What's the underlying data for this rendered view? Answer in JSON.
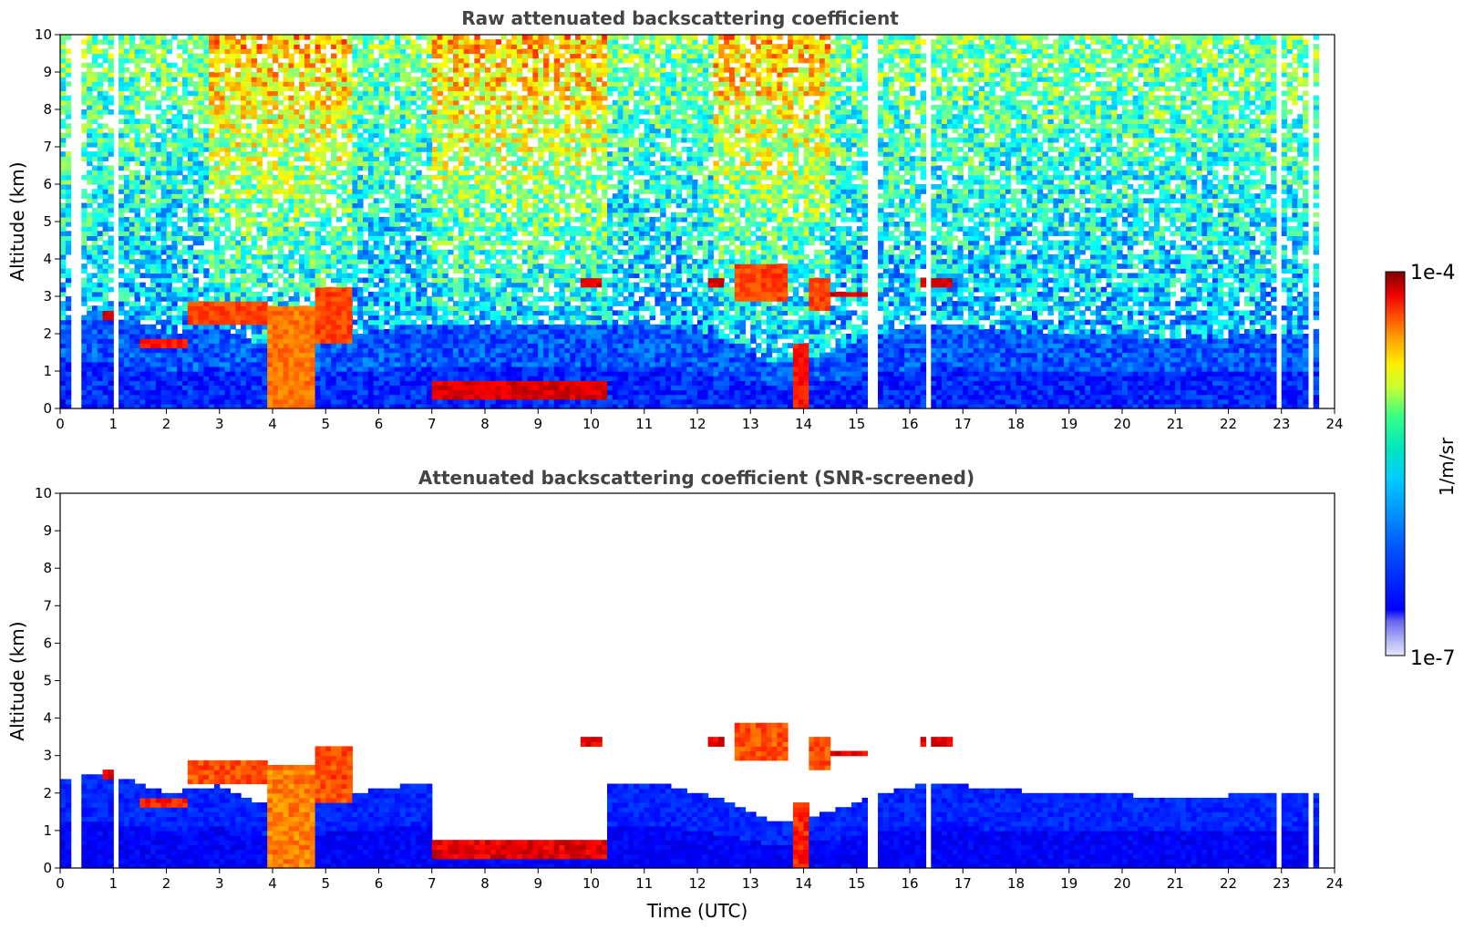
{
  "chart_data": [
    {
      "type": "heatmap",
      "title": "Raw attenuated backscattering coefficient",
      "xlabel": "",
      "ylabel": "Altitude (km)",
      "xlim": [
        0,
        24
      ],
      "ylim": [
        0,
        10
      ],
      "x_ticks": [
        "0",
        "1",
        "2",
        "3",
        "4",
        "5",
        "6",
        "7",
        "8",
        "9",
        "10",
        "11",
        "12",
        "13",
        "14",
        "15",
        "16",
        "17",
        "18",
        "19",
        "20",
        "21",
        "22",
        "23",
        "24"
      ],
      "y_ticks": [
        "0",
        "1",
        "2",
        "3",
        "4",
        "5",
        "6",
        "7",
        "8",
        "9",
        "10"
      ],
      "gaps_hours": [
        [
          0.22,
          0.26
        ],
        [
          0.33,
          0.37
        ],
        [
          0.98,
          1.08
        ],
        [
          1.38,
          1.42
        ],
        [
          2.0,
          2.02
        ],
        [
          14.7,
          14.75
        ],
        [
          15.25,
          15.36
        ],
        [
          16.3,
          16.42
        ],
        [
          22.92,
          23.0
        ],
        [
          23.4,
          23.45
        ],
        [
          23.55,
          23.6
        ],
        [
          23.67,
          24.0
        ]
      ],
      "cloud_features": [
        {
          "t": [
            0.8,
            1.0
          ],
          "base": 2.4,
          "top": 2.6,
          "level": 0.95
        },
        {
          "t": [
            1.5,
            2.4
          ],
          "base": 1.65,
          "top": 1.85,
          "level": 0.9
        },
        {
          "t": [
            2.4,
            3.9
          ],
          "base": 2.3,
          "top": 2.9,
          "level": 0.85
        },
        {
          "t": [
            3.9,
            4.8
          ],
          "base": 0.0,
          "top": 2.8,
          "level": 0.8
        },
        {
          "t": [
            4.8,
            5.5
          ],
          "base": 1.8,
          "top": 3.2,
          "level": 0.85
        },
        {
          "t": [
            7.0,
            10.3
          ],
          "base": 0.3,
          "top": 0.7,
          "level": 0.95
        },
        {
          "t": [
            9.8,
            10.2
          ],
          "base": 3.3,
          "top": 3.5,
          "level": 0.95
        },
        {
          "t": [
            12.2,
            12.5
          ],
          "base": 3.3,
          "top": 3.5,
          "level": 0.95
        },
        {
          "t": [
            12.7,
            13.7
          ],
          "base": 2.9,
          "top": 3.9,
          "level": 0.85
        },
        {
          "t": [
            13.8,
            14.1
          ],
          "base": 0.0,
          "top": 1.8,
          "level": 0.9
        },
        {
          "t": [
            14.1,
            14.5
          ],
          "base": 2.6,
          "top": 3.5,
          "level": 0.85
        },
        {
          "t": [
            14.5,
            15.3
          ],
          "base": 2.95,
          "top": 3.15,
          "level": 0.95
        },
        {
          "t": [
            16.2,
            16.8
          ],
          "base": 3.2,
          "top": 3.45,
          "level": 0.95
        }
      ]
    },
    {
      "type": "heatmap",
      "title": "Attenuated backscattering coefficient (SNR-screened)",
      "xlabel": "Time (UTC)",
      "ylabel": "Altitude (km)",
      "xlim": [
        0,
        24
      ],
      "ylim": [
        0,
        10
      ],
      "x_ticks": [
        "0",
        "1",
        "2",
        "3",
        "4",
        "5",
        "6",
        "7",
        "8",
        "9",
        "10",
        "11",
        "12",
        "13",
        "14",
        "15",
        "16",
        "17",
        "18",
        "19",
        "20",
        "21",
        "22",
        "23",
        "24"
      ],
      "y_ticks": [
        "0",
        "1",
        "2",
        "3",
        "4",
        "5",
        "6",
        "7",
        "8",
        "9",
        "10"
      ],
      "boundary_layer_top_km": [
        {
          "t": 0.0,
          "h": 2.4
        },
        {
          "t": 1.0,
          "h": 2.5
        },
        {
          "t": 2.0,
          "h": 2.0
        },
        {
          "t": 3.0,
          "h": 2.2
        },
        {
          "t": 4.0,
          "h": 1.6
        },
        {
          "t": 5.5,
          "h": 2.0
        },
        {
          "t": 6.5,
          "h": 2.2
        },
        {
          "t": 7.0,
          "h": 2.3
        },
        {
          "t": 10.3,
          "h": 2.3
        },
        {
          "t": 11.5,
          "h": 2.2
        },
        {
          "t": 12.5,
          "h": 1.8
        },
        {
          "t": 13.5,
          "h": 1.2
        },
        {
          "t": 14.5,
          "h": 1.5
        },
        {
          "t": 15.5,
          "h": 2.0
        },
        {
          "t": 16.5,
          "h": 2.3
        },
        {
          "t": 17.5,
          "h": 2.1
        },
        {
          "t": 19.0,
          "h": 2.0
        },
        {
          "t": 21.0,
          "h": 1.9
        },
        {
          "t": 23.7,
          "h": 2.0
        }
      ],
      "screened_gap_hours": [
        [
          7.0,
          10.3
        ]
      ]
    }
  ],
  "colorbar": {
    "label": "1/m/sr",
    "min_label": "1e-7",
    "max_label": "1e-4",
    "scale": "log",
    "colormap": "jet"
  }
}
